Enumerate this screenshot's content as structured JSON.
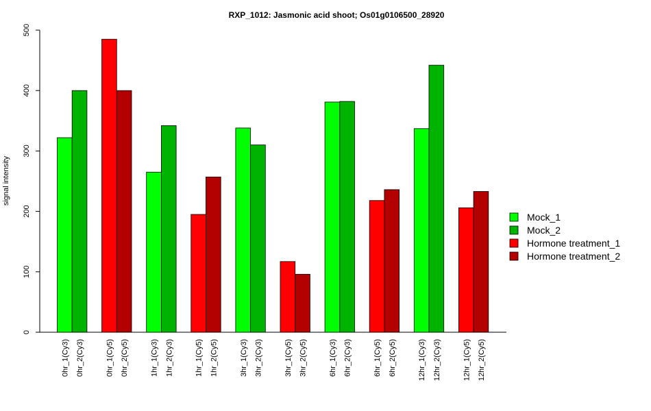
{
  "chart_data": {
    "type": "bar",
    "title": "RXP_1012: Jasmonic acid shoot; Os01g0106500_28920",
    "ylabel": "signal intensity",
    "ylim": [
      0,
      500
    ],
    "yticks": [
      0,
      100,
      200,
      300,
      400,
      500
    ],
    "grid": false,
    "legend_placement": "right",
    "legend": [
      {
        "name": "Mock_1",
        "color": "#00ff00"
      },
      {
        "name": "Mock_2",
        "color": "#00b300"
      },
      {
        "name": "Hormone treatment_1",
        "color": "#ff0000"
      },
      {
        "name": "Hormone treatment_2",
        "color": "#b30000"
      }
    ],
    "groups": [
      {
        "bars": [
          {
            "label": "0hr_1(Cy3)",
            "value": 322,
            "color": "#00ff00"
          },
          {
            "label": "0hr_2(Cy3)",
            "value": 400,
            "color": "#00b300"
          }
        ]
      },
      {
        "bars": [
          {
            "label": "0hr_1(Cy5)",
            "value": 485,
            "color": "#ff0000"
          },
          {
            "label": "0hr_2(Cy5)",
            "value": 400,
            "color": "#b30000"
          }
        ]
      },
      {
        "bars": [
          {
            "label": "1hr_1(Cy3)",
            "value": 265,
            "color": "#00ff00"
          },
          {
            "label": "1hr_2(Cy3)",
            "value": 342,
            "color": "#00b300"
          }
        ]
      },
      {
        "bars": [
          {
            "label": "1hr_1(Cy5)",
            "value": 195,
            "color": "#ff0000"
          },
          {
            "label": "1hr_2(Cy5)",
            "value": 257,
            "color": "#b30000"
          }
        ]
      },
      {
        "bars": [
          {
            "label": "3hr_1(Cy3)",
            "value": 338,
            "color": "#00ff00"
          },
          {
            "label": "3hr_2(Cy3)",
            "value": 310,
            "color": "#00b300"
          }
        ]
      },
      {
        "bars": [
          {
            "label": "3hr_1(Cy5)",
            "value": 117,
            "color": "#ff0000"
          },
          {
            "label": "3hr_2(Cy5)",
            "value": 96,
            "color": "#b30000"
          }
        ]
      },
      {
        "bars": [
          {
            "label": "6hr_1(Cy3)",
            "value": 381,
            "color": "#00ff00"
          },
          {
            "label": "6hr_2(Cy3)",
            "value": 382,
            "color": "#00b300"
          }
        ]
      },
      {
        "bars": [
          {
            "label": "6hr_1(Cy5)",
            "value": 218,
            "color": "#ff0000"
          },
          {
            "label": "6hr_2(Cy5)",
            "value": 236,
            "color": "#b30000"
          }
        ]
      },
      {
        "bars": [
          {
            "label": "12hr_1(Cy3)",
            "value": 337,
            "color": "#00ff00"
          },
          {
            "label": "12hr_2(Cy3)",
            "value": 442,
            "color": "#00b300"
          }
        ]
      },
      {
        "bars": [
          {
            "label": "12hr_1(Cy5)",
            "value": 206,
            "color": "#ff0000"
          },
          {
            "label": "12hr_2(Cy5)",
            "value": 233,
            "color": "#b30000"
          }
        ]
      }
    ]
  }
}
